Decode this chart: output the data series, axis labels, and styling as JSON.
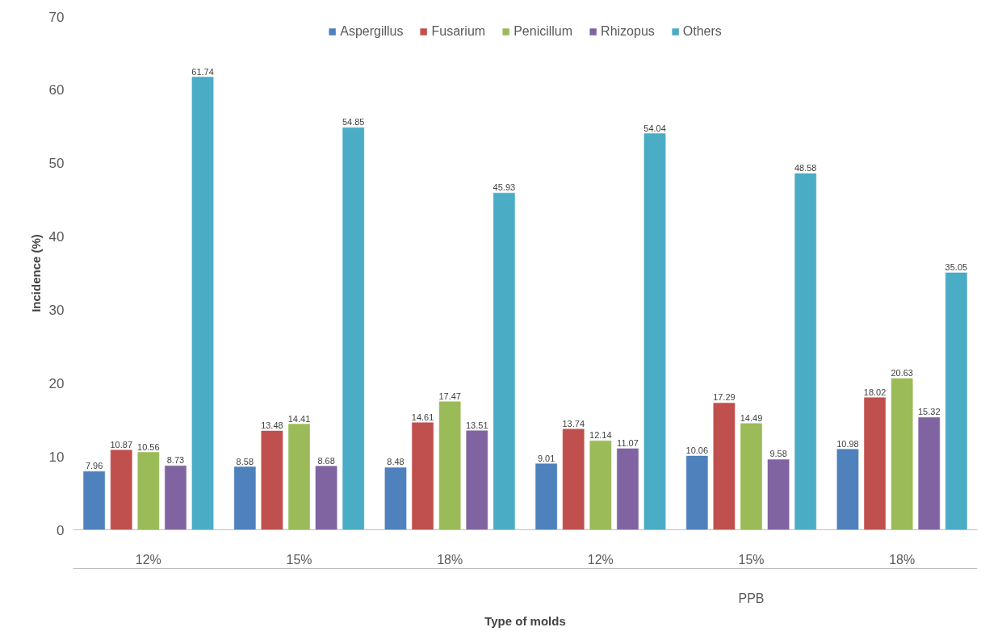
{
  "chart_data": {
    "type": "bar",
    "xlabel": "Type of molds",
    "ylabel": "Incidence (%)",
    "categories": [
      "12%",
      "15%",
      "18%",
      "12%",
      "15%",
      "18%"
    ],
    "series": [
      {
        "name": "Aspergillus",
        "color": "#4f81bd",
        "values": [
          7.96,
          8.58,
          8.48,
          9.01,
          10.06,
          10.98
        ]
      },
      {
        "name": "Fusarium",
        "color": "#c0504d",
        "values": [
          10.87,
          13.48,
          14.61,
          13.74,
          17.29,
          18.02
        ]
      },
      {
        "name": "Penicillum",
        "color": "#9bbb59",
        "values": [
          10.56,
          14.41,
          17.47,
          12.14,
          14.49,
          20.63
        ]
      },
      {
        "name": "Rhizopus",
        "color": "#8064a2",
        "values": [
          8.73,
          8.68,
          13.51,
          11.07,
          9.58,
          15.32
        ]
      },
      {
        "name": "Others",
        "color": "#4bacc6",
        "values": [
          61.74,
          54.85,
          45.93,
          54.04,
          48.58,
          35.05
        ]
      }
    ],
    "ylim": [
      0,
      70
    ],
    "yticks": [
      0,
      10,
      20,
      30,
      40,
      50,
      60,
      70
    ],
    "annotations": [
      "PPB"
    ],
    "data_labels": true,
    "legend": "top",
    "grid": false
  }
}
